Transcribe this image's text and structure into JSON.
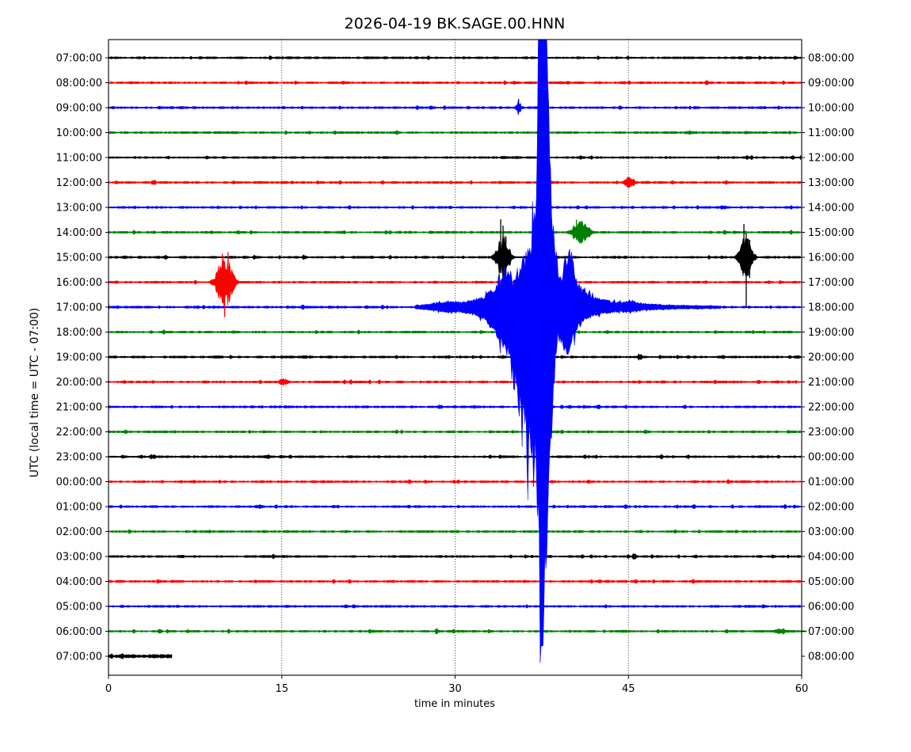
{
  "figure": {
    "title": "2026-04-19 BK.SAGE.00.HNN",
    "date": "2026-04-19",
    "station_id": "BK.SAGE.00.HNN"
  },
  "chart_data": {
    "type": "line",
    "subtype": "helicorder-dayplot-seismogram",
    "title": "2026-04-19 BK.SAGE.00.HNN",
    "xlabel": "time in minutes",
    "ylabel": "UTC (local time = UTC - 07:00)",
    "xlim": [
      0,
      60
    ],
    "x_ticks": [
      0,
      15,
      30,
      45,
      60
    ],
    "grid": {
      "vertical_dotted_at": [
        15,
        30,
        45
      ]
    },
    "minutes_per_row": 60,
    "trace_color_cycle": [
      "#000000",
      "#ff0000",
      "#0000ff",
      "#008000"
    ],
    "rows": [
      {
        "utc": "07:00:00",
        "local": "08:00:00",
        "color": "#000000"
      },
      {
        "utc": "08:00:00",
        "local": "09:00:00",
        "color": "#ff0000"
      },
      {
        "utc": "09:00:00",
        "local": "10:00:00",
        "color": "#0000ff"
      },
      {
        "utc": "10:00:00",
        "local": "11:00:00",
        "color": "#008000"
      },
      {
        "utc": "11:00:00",
        "local": "12:00:00",
        "color": "#000000"
      },
      {
        "utc": "12:00:00",
        "local": "13:00:00",
        "color": "#ff0000"
      },
      {
        "utc": "13:00:00",
        "local": "14:00:00",
        "color": "#0000ff"
      },
      {
        "utc": "14:00:00",
        "local": "15:00:00",
        "color": "#008000"
      },
      {
        "utc": "15:00:00",
        "local": "16:00:00",
        "color": "#000000"
      },
      {
        "utc": "16:00:00",
        "local": "17:00:00",
        "color": "#ff0000"
      },
      {
        "utc": "17:00:00",
        "local": "18:00:00",
        "color": "#0000ff"
      },
      {
        "utc": "18:00:00",
        "local": "19:00:00",
        "color": "#008000"
      },
      {
        "utc": "19:00:00",
        "local": "20:00:00",
        "color": "#000000"
      },
      {
        "utc": "20:00:00",
        "local": "21:00:00",
        "color": "#ff0000"
      },
      {
        "utc": "21:00:00",
        "local": "22:00:00",
        "color": "#0000ff"
      },
      {
        "utc": "22:00:00",
        "local": "23:00:00",
        "color": "#008000"
      },
      {
        "utc": "23:00:00",
        "local": "00:00:00",
        "color": "#000000"
      },
      {
        "utc": "00:00:00",
        "local": "01:00:00",
        "color": "#ff0000"
      },
      {
        "utc": "01:00:00",
        "local": "02:00:00",
        "color": "#0000ff"
      },
      {
        "utc": "02:00:00",
        "local": "03:00:00",
        "color": "#008000"
      },
      {
        "utc": "03:00:00",
        "local": "04:00:00",
        "color": "#000000"
      },
      {
        "utc": "04:00:00",
        "local": "05:00:00",
        "color": "#ff0000"
      },
      {
        "utc": "05:00:00",
        "local": "06:00:00",
        "color": "#0000ff"
      },
      {
        "utc": "06:00:00",
        "local": "07:00:00",
        "color": "#008000"
      },
      {
        "utc": "07:00:00",
        "local": "08:00:00",
        "color": "#000000",
        "end_minute": 5.6,
        "noise": 1.7
      }
    ],
    "events": [
      {
        "row": 2,
        "t": 35.5,
        "w": 0.45,
        "amp": 8,
        "spikes": [
          [
            35.5,
            11,
            7
          ]
        ]
      },
      {
        "row": 5,
        "t": 3.9,
        "w": 0.4,
        "amp": 4
      },
      {
        "row": 5,
        "t": 45.1,
        "w": 1.0,
        "amp": 6
      },
      {
        "row": 7,
        "t": 40.85,
        "w": 1.6,
        "amp": 12,
        "spikes": [
          [
            40.5,
            16,
            10
          ],
          [
            41.0,
            14,
            13
          ]
        ]
      },
      {
        "row": 8,
        "t": 34.15,
        "w": 1.2,
        "amp": 25,
        "spikes": [
          [
            33.95,
            48,
            20
          ],
          [
            34.15,
            40,
            40
          ],
          [
            34.4,
            26,
            46
          ]
        ]
      },
      {
        "row": 8,
        "t": 55.2,
        "w": 1.2,
        "amp": 25,
        "spikes": [
          [
            55.0,
            42,
            20
          ],
          [
            55.2,
            30,
            63
          ],
          [
            55.5,
            22,
            26
          ]
        ]
      },
      {
        "row": 9,
        "t": 10.05,
        "w": 1.5,
        "amp": 28,
        "spikes": [
          [
            9.85,
            36,
            22
          ],
          [
            10.05,
            26,
            44
          ],
          [
            10.35,
            38,
            24
          ]
        ]
      },
      {
        "row": 12,
        "t": 46.0,
        "w": 0.5,
        "amp": 4.5
      },
      {
        "row": 13,
        "t": 15.15,
        "w": 0.8,
        "amp": 4.5
      },
      {
        "row": 13,
        "t": 21.0,
        "w": 0.3,
        "amp": 3.5
      },
      {
        "row": 14,
        "t": 28.7,
        "w": 0.5,
        "amp": 3
      },
      {
        "row": 14,
        "t": 42.4,
        "w": 0.5,
        "amp": 2.5
      },
      {
        "row": 18,
        "t": 13.0,
        "w": 0.9,
        "amp": 2.5
      },
      {
        "row": 20,
        "t": 45.5,
        "w": 0.4,
        "amp": 4
      },
      {
        "row": 23,
        "t": 28.4,
        "w": 0.3,
        "amp": 3.5
      },
      {
        "row": 23,
        "t": 53.5,
        "w": 0.3,
        "amp": 3
      },
      {
        "row": 23,
        "t": 58.2,
        "w": 1.4,
        "amp": 3.5
      }
    ],
    "main_event": {
      "row": 10,
      "utc_row_start": "17:00:00",
      "envelope_t_up_down": [
        [
          26.5,
          2,
          2
        ],
        [
          28,
          4,
          4
        ],
        [
          29.5,
          7,
          7
        ],
        [
          30.5,
          6,
          6
        ],
        [
          31.5,
          9,
          9
        ],
        [
          32.5,
          13,
          14
        ],
        [
          33.3,
          22,
          28
        ],
        [
          34.0,
          32,
          45
        ],
        [
          34.6,
          42,
          58
        ],
        [
          35.0,
          30,
          68
        ],
        [
          35.4,
          38,
          110
        ],
        [
          35.8,
          55,
          140
        ],
        [
          36.2,
          60,
          165
        ],
        [
          36.6,
          80,
          170
        ],
        [
          36.9,
          115,
          185
        ],
        [
          37.1,
          170,
          240
        ],
        [
          37.25,
          340,
          290
        ],
        [
          37.45,
          340,
          430
        ],
        [
          37.62,
          340,
          430
        ],
        [
          37.8,
          340,
          330
        ],
        [
          38.0,
          340,
          260
        ],
        [
          38.2,
          180,
          190
        ],
        [
          38.45,
          110,
          120
        ],
        [
          38.7,
          70,
          63
        ],
        [
          38.9,
          45,
          30
        ],
        [
          39.15,
          30,
          45
        ],
        [
          39.5,
          55,
          58
        ],
        [
          39.85,
          72,
          55
        ],
        [
          40.2,
          55,
          40
        ],
        [
          40.6,
          30,
          26
        ],
        [
          41.1,
          20,
          17
        ],
        [
          41.8,
          13,
          11
        ],
        [
          42.8,
          9,
          8
        ],
        [
          44.0,
          6,
          6
        ],
        [
          45.0,
          7,
          6
        ],
        [
          46.2,
          4.5,
          4
        ],
        [
          47.6,
          3,
          3
        ],
        [
          49.5,
          2.2,
          2.2
        ],
        [
          53.0,
          1.6,
          1.6
        ]
      ]
    }
  }
}
